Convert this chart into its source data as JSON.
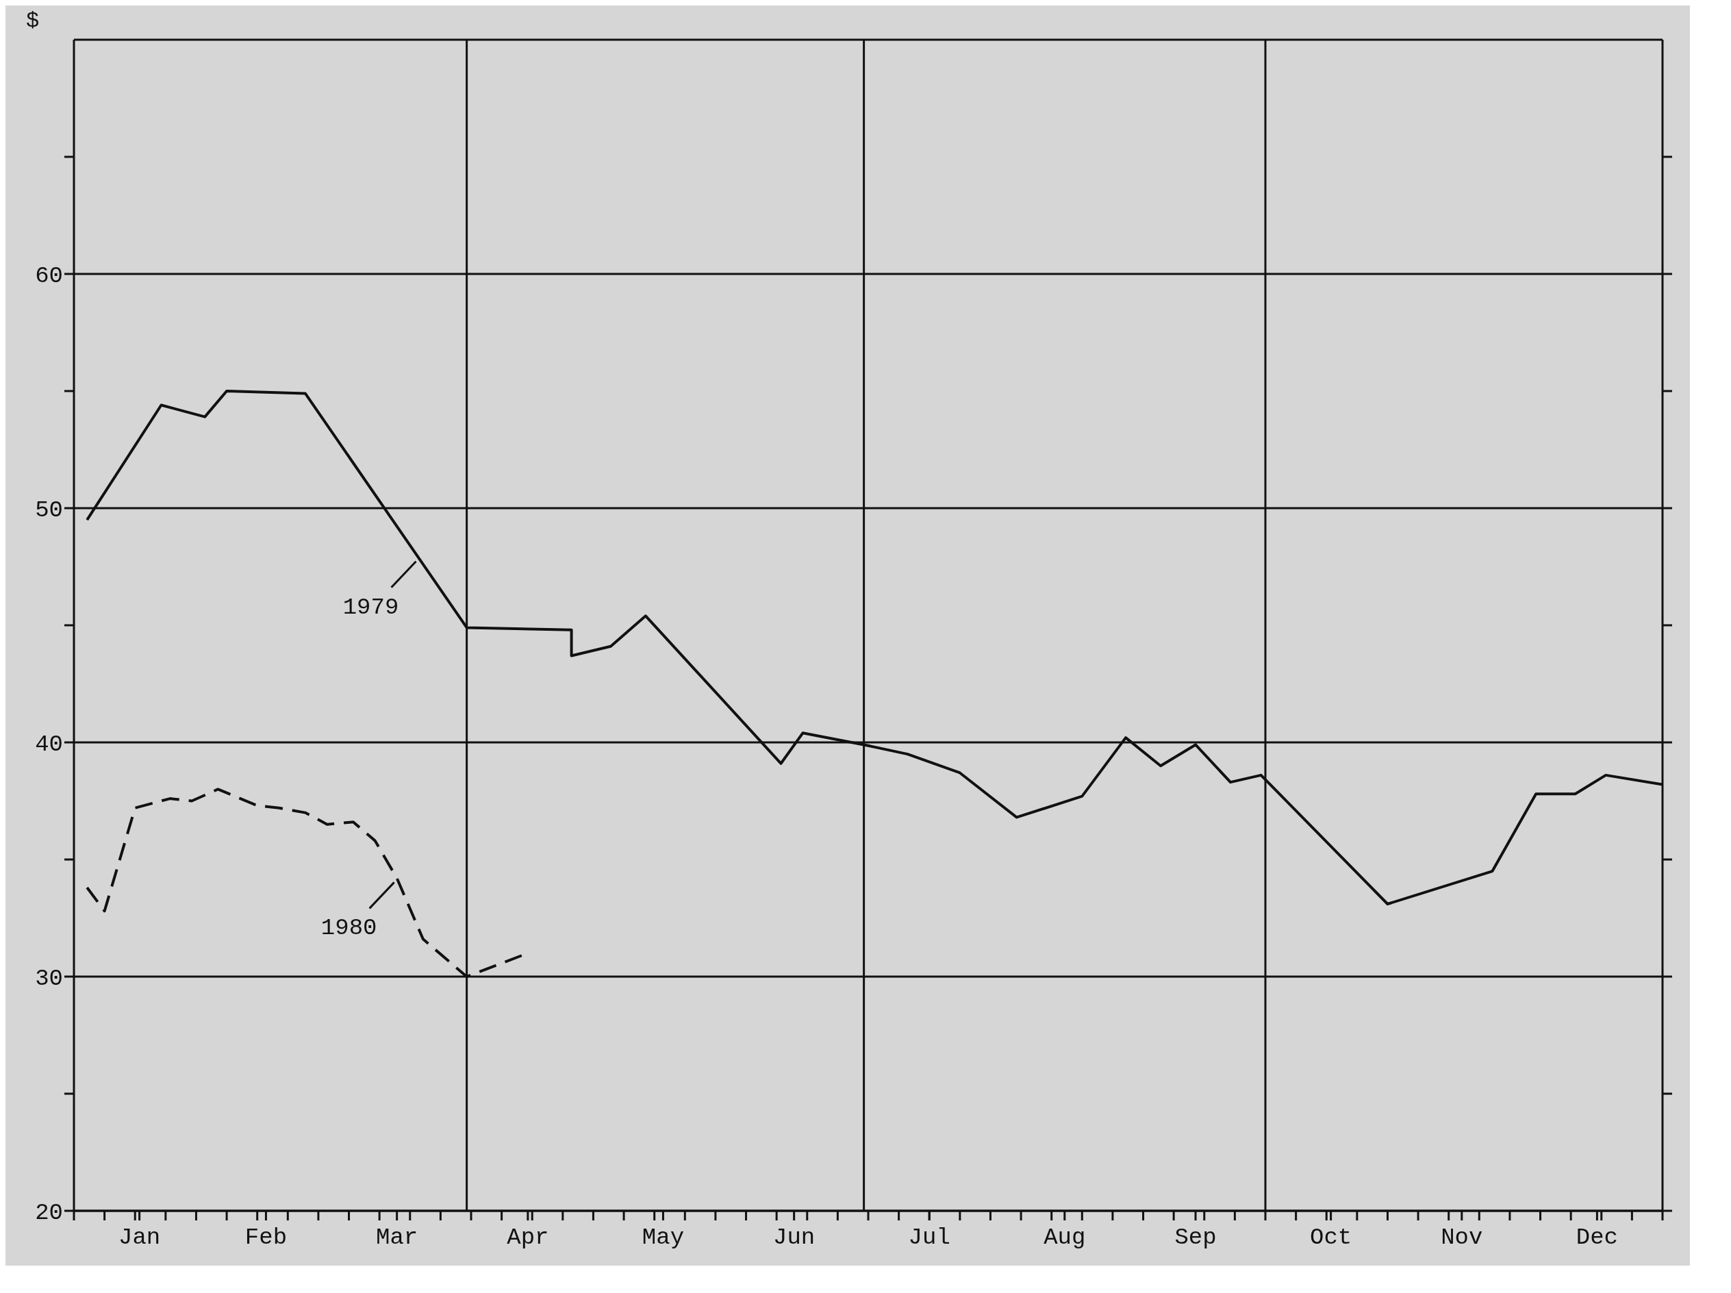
{
  "chart_data": {
    "type": "line",
    "ylabel": "$",
    "xlim": [
      "--01-01",
      "--12-31"
    ],
    "xticks": [
      {
        "value": "--01-01",
        "label": null
      },
      {
        "value": "--01-08",
        "label": null
      },
      {
        "value": "--01-15",
        "label": null
      },
      {
        "value": "--01-22",
        "label": null
      },
      {
        "value": "--01-29",
        "label": null
      },
      {
        "value": "--02-05",
        "label": null
      },
      {
        "value": "--02-12",
        "label": null
      },
      {
        "value": "--02-19",
        "label": null
      },
      {
        "value": "--02-26",
        "label": null
      },
      {
        "value": "--03-05",
        "label": null
      },
      {
        "value": "--03-12",
        "label": null
      },
      {
        "value": "--03-19",
        "label": null
      },
      {
        "value": "--03-26",
        "label": null
      },
      {
        "value": "--04-02",
        "label": null
      },
      {
        "value": "--04-09",
        "label": null
      },
      {
        "value": "--04-16",
        "label": null
      },
      {
        "value": "--04-23",
        "label": null
      },
      {
        "value": "--04-30",
        "label": null
      },
      {
        "value": "--05-07",
        "label": null
      },
      {
        "value": "--05-14",
        "label": null
      },
      {
        "value": "--05-21",
        "label": null
      },
      {
        "value": "--05-28",
        "label": null
      },
      {
        "value": "--06-04",
        "label": null
      },
      {
        "value": "--06-11",
        "label": null
      },
      {
        "value": "--06-18",
        "label": null
      },
      {
        "value": "--06-25",
        "label": null
      },
      {
        "value": "--07-02",
        "label": null
      },
      {
        "value": "--07-09",
        "label": null
      },
      {
        "value": "--07-16",
        "label": null
      },
      {
        "value": "--07-23",
        "label": null
      },
      {
        "value": "--07-30",
        "label": null
      },
      {
        "value": "--08-06",
        "label": null
      },
      {
        "value": "--08-13",
        "label": null
      },
      {
        "value": "--08-20",
        "label": null
      },
      {
        "value": "--08-27",
        "label": null
      },
      {
        "value": "--09-03",
        "label": null
      },
      {
        "value": "--09-10",
        "label": null
      },
      {
        "value": "--09-17",
        "label": null
      },
      {
        "value": "--09-24",
        "label": null
      },
      {
        "value": "--10-01",
        "label": null
      },
      {
        "value": "--10-08",
        "label": null
      },
      {
        "value": "--10-15",
        "label": null
      },
      {
        "value": "--10-22",
        "label": null
      },
      {
        "value": "--10-29",
        "label": null
      },
      {
        "value": "--11-05",
        "label": null
      },
      {
        "value": "--11-12",
        "label": null
      },
      {
        "value": "--11-19",
        "label": null
      },
      {
        "value": "--11-26",
        "label": null
      },
      {
        "value": "--12-03",
        "label": null
      },
      {
        "value": "--12-10",
        "label": null
      },
      {
        "value": "--12-17",
        "label": null
      },
      {
        "value": "--12-24",
        "label": null
      },
      {
        "value": "--12-31",
        "label": null
      },
      {
        "value": "--01-16",
        "label": "Jan"
      },
      {
        "value": "--02-14",
        "label": "Feb"
      },
      {
        "value": "--03-16",
        "label": "Mar"
      },
      {
        "value": "--04-15",
        "label": "Apr"
      },
      {
        "value": "--05-16",
        "label": "May"
      },
      {
        "value": "--06-15",
        "label": "Jun"
      },
      {
        "value": "--07-16",
        "label": "Jul"
      },
      {
        "value": "--08-16",
        "label": "Aug"
      },
      {
        "value": "--09-15",
        "label": "Sep"
      },
      {
        "value": "--10-16",
        "label": "Oct"
      },
      {
        "value": "--11-15",
        "label": "Nov"
      },
      {
        "value": "--12-16",
        "label": "Dec"
      }
    ],
    "ylim": [
      20,
      70
    ],
    "yticks": [
      20,
      {
        "value": 25,
        "label": null
      },
      30,
      {
        "value": 35,
        "label": null
      },
      40,
      {
        "value": 45,
        "label": null
      },
      50,
      {
        "value": 55,
        "label": null
      },
      60,
      {
        "value": 65,
        "label": null
      }
    ],
    "grid": "y",
    "ref_lines": [
      {
        "axis": "x",
        "value": "--04-01",
        "label": null
      },
      {
        "axis": "x",
        "value": "--07-01",
        "label": null
      },
      {
        "axis": "x",
        "value": "--10-01",
        "label": null
      }
    ],
    "series": [
      {
        "color": "#111111",
        "line_style": "solid",
        "x": [
          "--01-04",
          "--01-21",
          "--01-31",
          "--02-05",
          "--02-23",
          "--04-01",
          "--04-25",
          "--04-25",
          "--05-04",
          "--05-12",
          "--06-12",
          "--06-17",
          "--07-01",
          "--07-11",
          "--07-23",
          "--08-05",
          "--08-20",
          "--08-30",
          "--09-07",
          "--09-15",
          "--09-23",
          "--09-30",
          "--10-29",
          "--11-22",
          "--12-02",
          "--12-11",
          "--12-18",
          "--12-31"
        ],
        "values": [
          49.5,
          54.4,
          53.9,
          55.0,
          54.9,
          44.9,
          44.8,
          43.7,
          44.1,
          45.4,
          39.1,
          40.4,
          39.9,
          39.5,
          38.7,
          36.8,
          37.7,
          40.2,
          39.0,
          39.9,
          38.3,
          38.6,
          33.1,
          34.5,
          37.8,
          37.8,
          38.6,
          38.2
        ]
      },
      {
        "color": "#111111",
        "line_style": "dashed",
        "x": [
          "--01-04",
          "--01-08",
          "--01-15",
          "--01-23",
          "--01-28",
          "--02-03",
          "--02-12",
          "--02-17",
          "--02-23",
          "--02-28",
          "--03-06",
          "--03-11",
          "--03-16",
          "--03-22",
          "--04-01",
          "--04-15"
        ],
        "values": [
          33.8,
          32.8,
          37.2,
          37.6,
          37.5,
          38.0,
          37.3,
          37.2,
          37.0,
          36.5,
          36.6,
          35.8,
          34.2,
          31.6,
          30.0,
          31.0
        ]
      }
    ],
    "annotations": [
      {
        "text": "1979",
        "x": "--03-21",
        "y": 47.9
      },
      {
        "text": "1980",
        "x": "--03-16",
        "y": 34.2
      }
    ]
  }
}
